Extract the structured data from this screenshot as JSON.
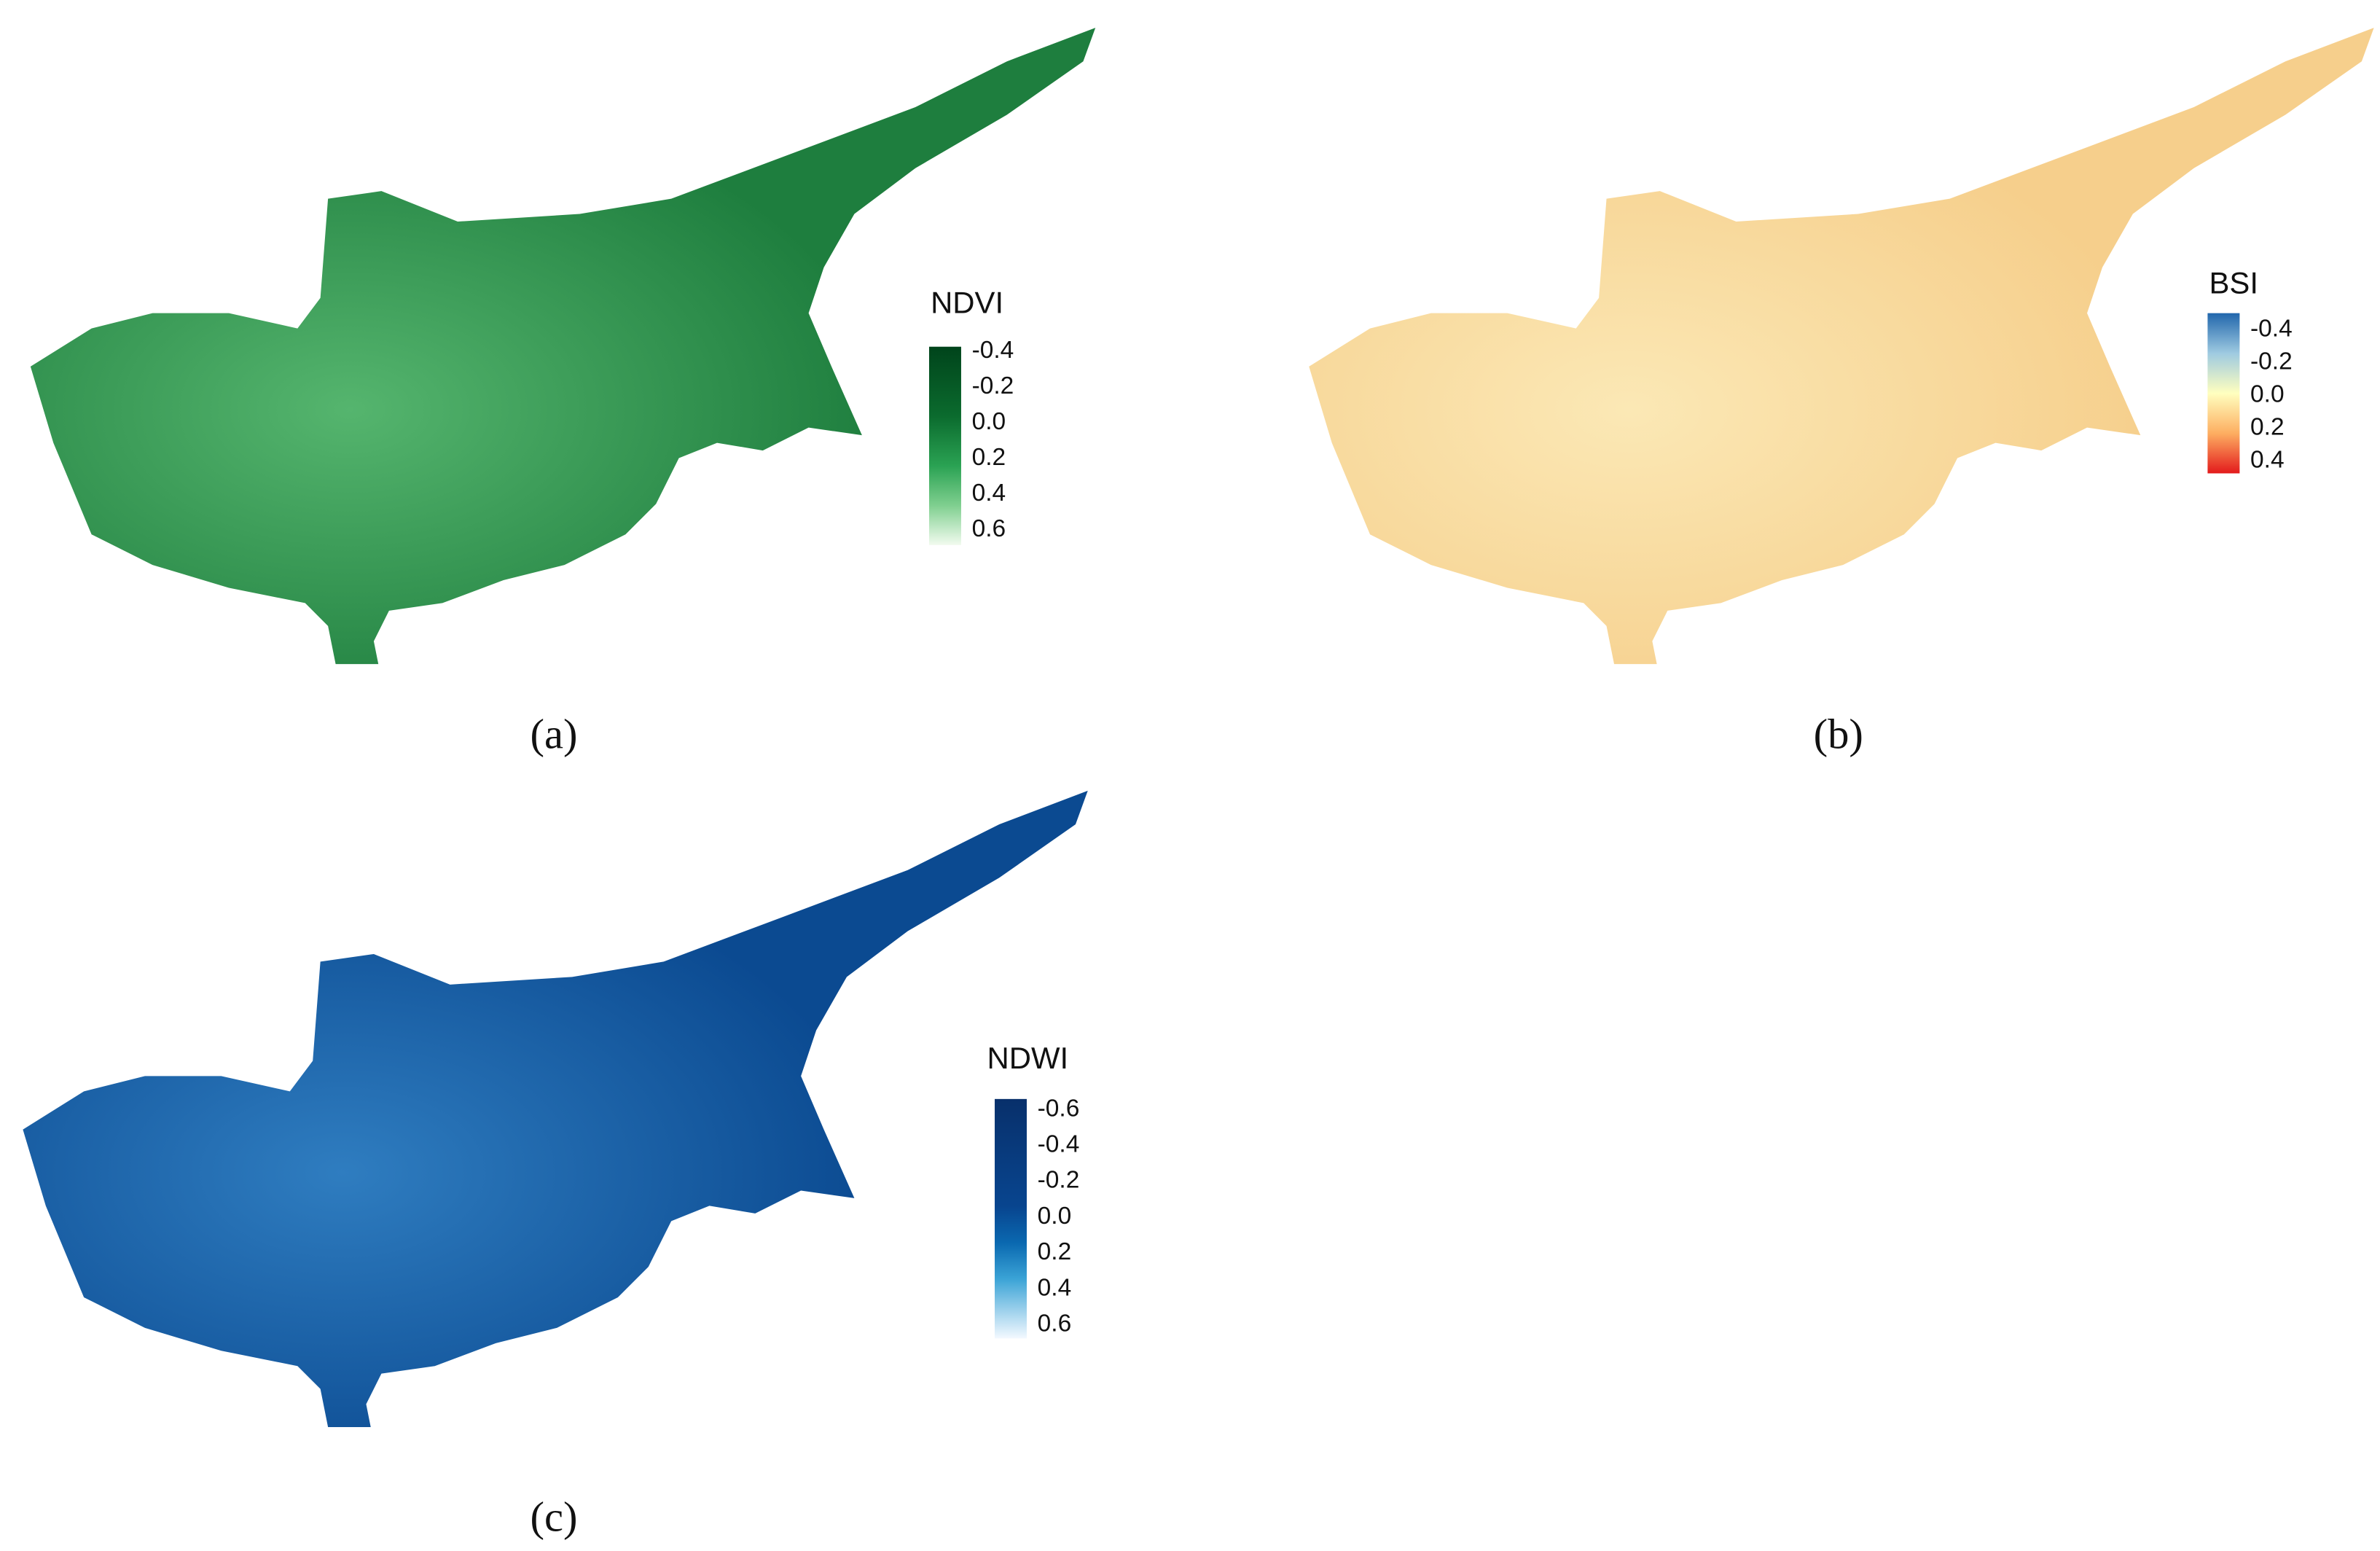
{
  "panels": [
    {
      "legend": {
        "title": "NDVI",
        "ticks": [
          "-0.4",
          "-0.2",
          "0.0",
          "0.2",
          "0.4",
          "0.6"
        ]
      },
      "caption": "(a)"
    },
    {
      "legend": {
        "title": "BSI",
        "ticks": [
          "-0.4",
          "-0.2",
          "0.0",
          "0.2",
          "0.4"
        ]
      },
      "caption": "(b)"
    },
    {
      "legend": {
        "title": "NDWI",
        "ticks": [
          "-0.6",
          "-0.4",
          "-0.2",
          "0.0",
          "0.2",
          "0.4",
          "0.6"
        ]
      },
      "caption": "(c)"
    }
  ]
}
